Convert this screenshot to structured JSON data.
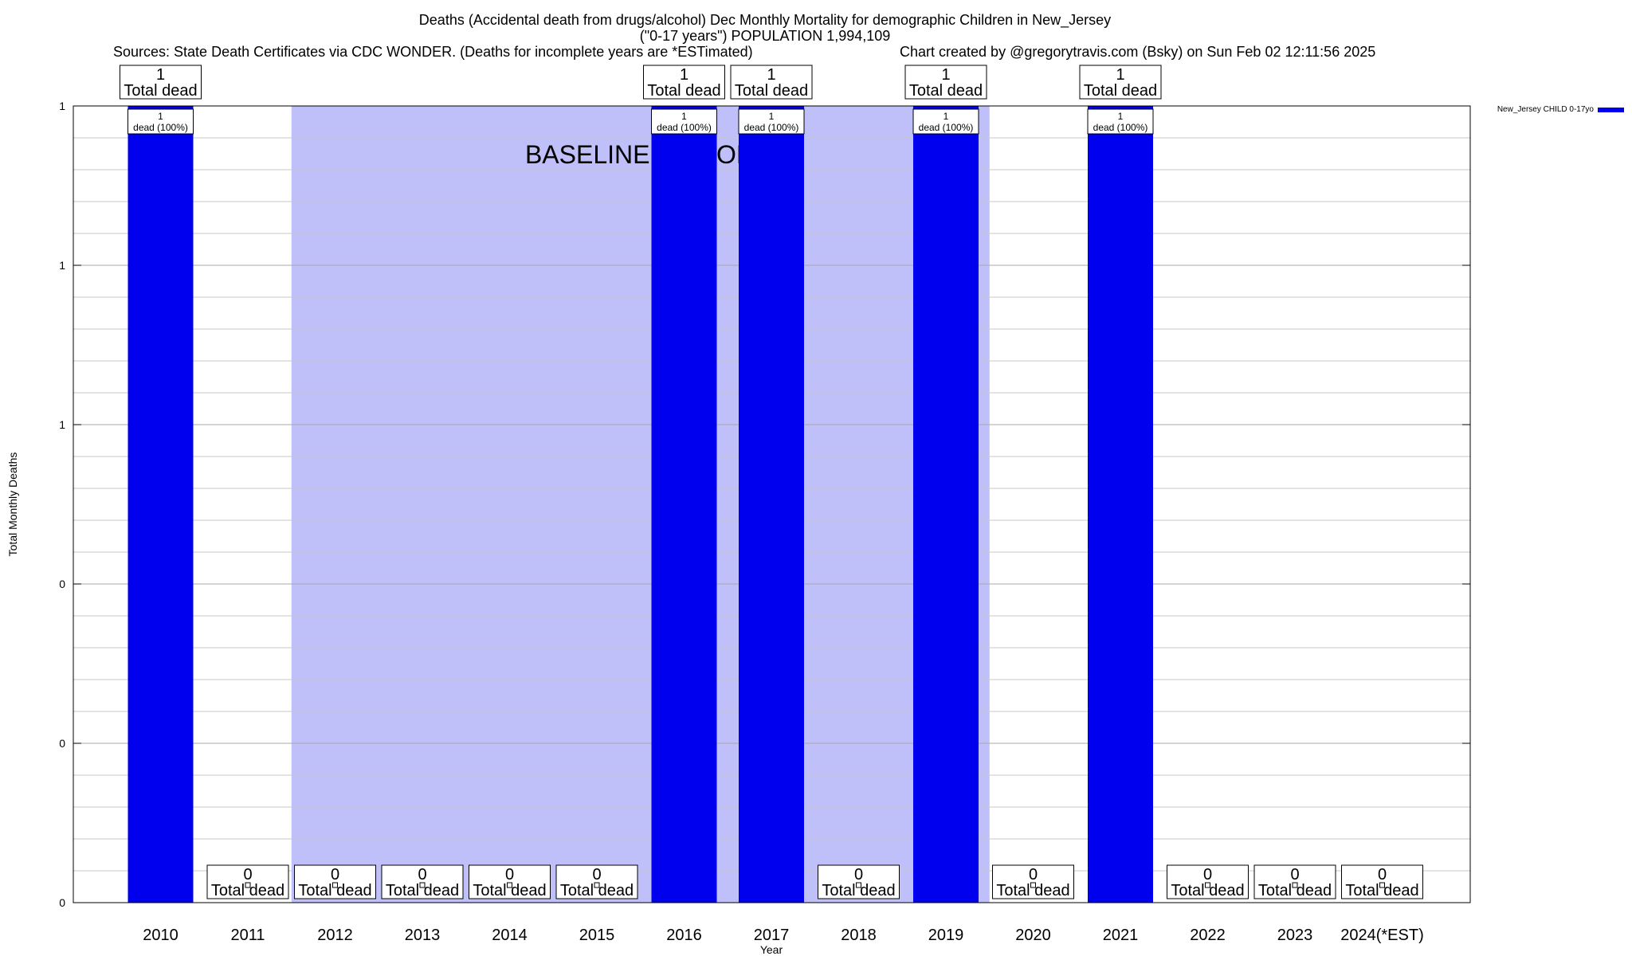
{
  "chart_data": {
    "type": "bar",
    "title_lines": [
      "Deaths (Accidental death from drugs/alcohol) Dec Monthly Mortality for demographic Children in New_Jersey",
      "(\"0-17 years\") POPULATION 1,994,109"
    ],
    "sources_text": "Sources: State Death Certificates via CDC WONDER. (Deaths for incomplete years are *ESTimated)",
    "credit_text": "Chart created by @gregorytravis.com (Bsky) on Sun Feb 02 12:11:56 2025",
    "xlabel": "Year",
    "ylabel": "Total Monthly Deaths",
    "categories": [
      "2010",
      "2011",
      "2012",
      "2013",
      "2014",
      "2015",
      "2016",
      "2017",
      "2018",
      "2019",
      "2020",
      "2021",
      "2022",
      "2023",
      "2024(*EST)"
    ],
    "series": [
      {
        "name": "New_Jersey CHILD 0-17yo",
        "color": "#0000ee",
        "values": [
          1,
          0,
          0,
          0,
          0,
          0,
          1,
          1,
          0,
          1,
          0,
          1,
          0,
          0,
          0
        ]
      }
    ],
    "total_labels": {
      "count": [
        "1",
        "0",
        "0",
        "0",
        "0",
        "0",
        "1",
        "1",
        "0",
        "1",
        "0",
        "1",
        "0",
        "0",
        "0"
      ],
      "suffix": "Total dead"
    },
    "inner_labels": [
      "1",
      "",
      "",
      "",
      "",
      "",
      "1",
      "1",
      "",
      "1",
      "",
      "1",
      "",
      "",
      ""
    ],
    "inner_label_suffix": "dead (100%)",
    "ylim": [
      0,
      1
    ],
    "yticks": [
      0,
      0.2,
      0.4,
      0.6,
      0.8,
      1.0
    ],
    "ytick_labels": [
      "0",
      "0",
      "0",
      "1",
      "1",
      "1"
    ],
    "minor_grid_step": 0.04,
    "grid": true,
    "baseline": {
      "label": "BASELINE PERIOD",
      "start_category_index": 1.5,
      "end_category_index": 9.5,
      "color": "#bfbffa"
    },
    "legend_position": "top-right"
  }
}
